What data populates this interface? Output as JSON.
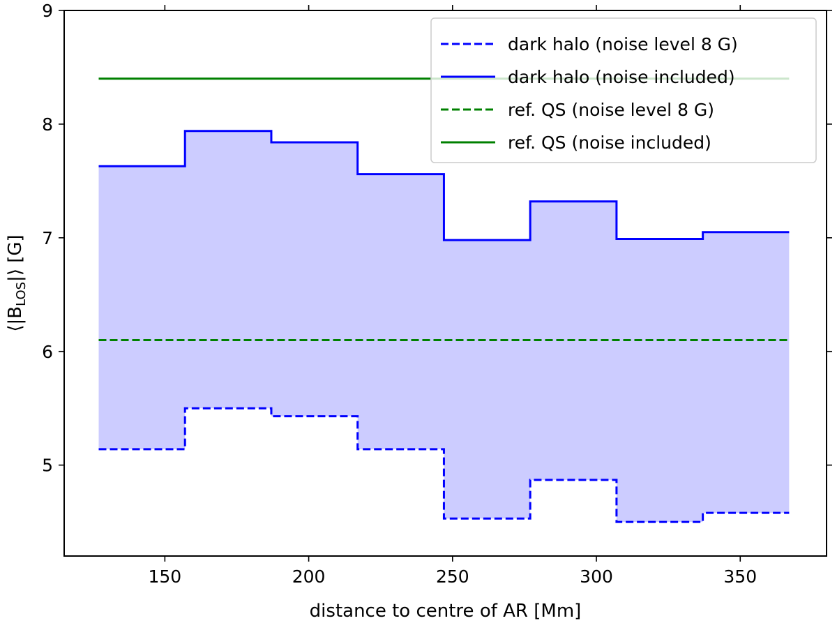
{
  "chart_data": {
    "type": "line",
    "xlabel": "distance to centre of AR [Mm]",
    "ylabel_prefix": "⟨|B",
    "ylabel_sub": "LOS",
    "ylabel_suffix": "|⟩ [G]",
    "xlim": [
      115,
      380
    ],
    "ylim": [
      4.2,
      9.0
    ],
    "xticks": [
      150,
      200,
      250,
      300,
      350
    ],
    "xtick_labels": [
      "150",
      "200",
      "250",
      "300",
      "350"
    ],
    "yticks": [
      5,
      6,
      7,
      8,
      9
    ],
    "ytick_labels": [
      "5",
      "6",
      "7",
      "8",
      "9"
    ],
    "grid": false,
    "legend_position": "top-right",
    "colors": {
      "dark_halo": "#0000ff",
      "ref_qs": "#008000",
      "fill": "#ccccff"
    },
    "bin_edges": [
      127,
      157,
      187,
      217,
      247,
      277,
      307,
      337,
      367
    ],
    "series": [
      {
        "name": "dark halo (noise level 8 G)",
        "style": "dashed",
        "color": "#0000ff",
        "values": [
          5.14,
          5.5,
          5.43,
          5.14,
          4.53,
          4.87,
          4.5,
          4.58
        ]
      },
      {
        "name": "dark halo (noise included)",
        "style": "solid",
        "color": "#0000ff",
        "values": [
          7.63,
          7.94,
          7.84,
          7.56,
          6.98,
          7.32,
          6.99,
          7.05
        ]
      },
      {
        "name": "ref. QS (noise level 8 G)",
        "style": "dashed",
        "color": "#008000",
        "constant": 6.1,
        "x_range": [
          127,
          367
        ]
      },
      {
        "name": "ref. QS (noise included)",
        "style": "solid",
        "color": "#008000",
        "constant": 8.4,
        "x_range": [
          127,
          367
        ]
      }
    ]
  }
}
